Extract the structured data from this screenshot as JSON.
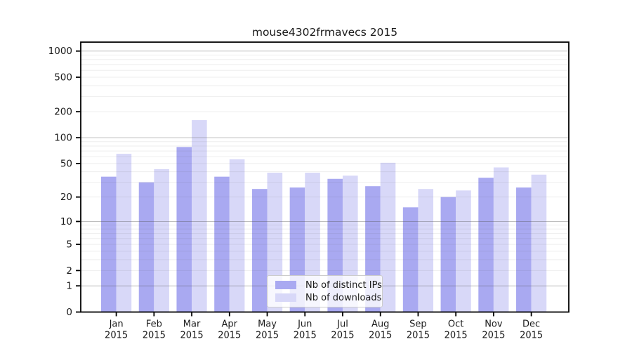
{
  "chart_data": {
    "type": "bar",
    "title": "mouse4302frmavecs 2015",
    "categories": [
      "Jan",
      "Feb",
      "Mar",
      "Apr",
      "May",
      "Jun",
      "Jul",
      "Aug",
      "Sep",
      "Oct",
      "Nov",
      "Dec"
    ],
    "x_year_label": "2015",
    "series": [
      {
        "name": "Nb of distinct IPs",
        "color": "#a9a9f1",
        "values": [
          35,
          30,
          78,
          35,
          25,
          26,
          33,
          27,
          15,
          20,
          34,
          26
        ]
      },
      {
        "name": "Nb of downloads",
        "color": "#d8d8f8",
        "values": [
          65,
          43,
          160,
          56,
          39,
          39,
          36,
          51,
          25,
          24,
          45,
          37
        ]
      }
    ],
    "y_axis": {
      "scale": "log10(1+v)",
      "ticks": [
        0,
        1,
        2,
        5,
        10,
        20,
        50,
        100,
        200,
        500,
        1000
      ],
      "major_gridlines": [
        1,
        10,
        100,
        1000
      ],
      "minor_gridlines": [
        2,
        3,
        4,
        5,
        6,
        7,
        8,
        9,
        20,
        30,
        40,
        50,
        60,
        70,
        80,
        90,
        200,
        300,
        400,
        500,
        600,
        700,
        800,
        900
      ],
      "ylim": [
        0,
        1266
      ]
    },
    "grid": "on",
    "legend_position": "bottom-center",
    "colors": {
      "axis": "#000000",
      "major_grid": "#c8c8c8",
      "minor_grid": "#eeeeee",
      "text": "#1a1a1a",
      "background": "#ffffff"
    }
  }
}
